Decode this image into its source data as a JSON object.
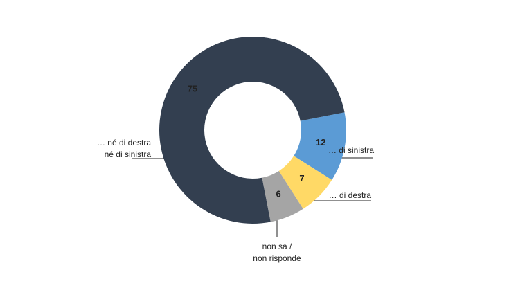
{
  "chart_data": {
    "type": "donut",
    "categories": [
      [
        "… di sinistra"
      ],
      [
        "… di destra"
      ],
      [
        "non sa /",
        "non risponde"
      ],
      [
        "… né di destra",
        "né di sinistra"
      ]
    ],
    "values": [
      12,
      7,
      6,
      75
    ],
    "colors": [
      "#5b9bd5",
      "#ffd966",
      "#a5a5a5",
      "#333f50"
    ],
    "value_label_colors": [
      "#000000",
      "#000000",
      "#000000",
      "#ffffff"
    ]
  }
}
